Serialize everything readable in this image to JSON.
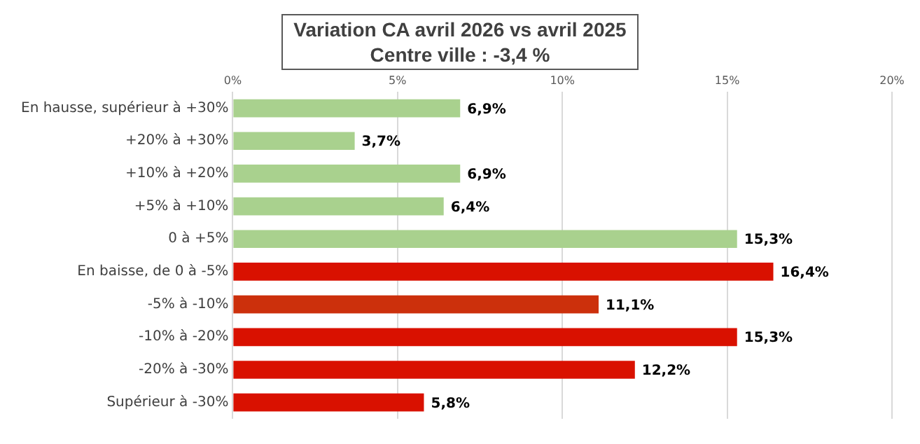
{
  "chart_data": {
    "type": "bar",
    "orientation": "horizontal",
    "title": "Variation CA avril 2026 vs avril 2025\nCentre ville  : -3,4 %",
    "categories": [
      "En hausse, supérieur à +30%",
      "+20% à +30%",
      "+10% à +20%",
      "+5% à +10%",
      "0 à +5%",
      "En baisse, de 0 à -5%",
      "-5% à -10%",
      "-10% à -20%",
      "-20% à -30%",
      "Supérieur à -30%"
    ],
    "values": [
      6.9,
      3.7,
      6.9,
      6.4,
      15.3,
      16.4,
      11.1,
      15.3,
      12.2,
      5.8
    ],
    "value_labels": [
      "6,9%",
      "3,7%",
      "6,9%",
      "6,4%",
      "15,3%",
      "16,4%",
      "11,1%",
      "15,3%",
      "12,2%",
      "5,8%"
    ],
    "colors": [
      "#a9d18e",
      "#a9d18e",
      "#a9d18e",
      "#a9d18e",
      "#a9d18e",
      "#d91100",
      "#cc300c",
      "#d91100",
      "#d91100",
      "#d91100"
    ],
    "xlim": [
      0,
      20
    ],
    "xticks": [
      {
        "value": 0,
        "label": "0%"
      },
      {
        "value": 5,
        "label": "5%"
      },
      {
        "value": 10,
        "label": "10%"
      },
      {
        "value": 15,
        "label": "15%"
      },
      {
        "value": 20,
        "label": "20%"
      }
    ],
    "grid": "x",
    "legend": false
  }
}
